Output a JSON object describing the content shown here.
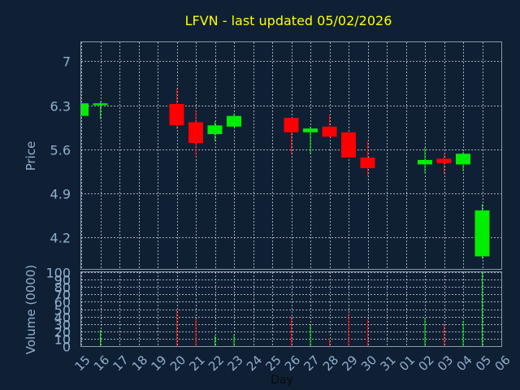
{
  "chart_data": [
    {
      "type": "candlestick",
      "title": "LFVN - last updated 05/02/2026",
      "ylabel": "Price",
      "ylim": [
        3.7,
        7.3
      ],
      "yticks": [
        "7",
        "6.3",
        "5.6",
        "4.9",
        "4.2"
      ],
      "ytick_values": [
        7.0,
        6.3,
        5.6,
        4.9,
        4.2
      ],
      "grid": true,
      "colors": {
        "up": "#00ee00",
        "down": "#ff0000",
        "title": "#ffff00",
        "axis_text": "#8fb0cf",
        "background": "#0f2034",
        "grid": "#ffffff"
      },
      "candles": [
        {
          "day": "15",
          "open": 6.13,
          "high": 6.33,
          "low": 6.13,
          "close": 6.33
        },
        {
          "day": "16",
          "open": 6.3,
          "high": 6.36,
          "low": 6.08,
          "close": 6.33
        },
        {
          "day": "20",
          "open": 6.32,
          "high": 6.57,
          "low": 5.92,
          "close": 5.98
        },
        {
          "day": "21",
          "open": 6.03,
          "high": 6.22,
          "low": 5.48,
          "close": 5.7
        },
        {
          "day": "22",
          "open": 5.84,
          "high": 6.04,
          "low": 5.73,
          "close": 5.98
        },
        {
          "day": "23",
          "open": 5.96,
          "high": 6.17,
          "low": 5.96,
          "close": 6.13
        },
        {
          "day": "26",
          "open": 6.1,
          "high": 6.1,
          "low": 5.52,
          "close": 5.87
        },
        {
          "day": "27",
          "open": 5.87,
          "high": 5.96,
          "low": 5.52,
          "close": 5.93
        },
        {
          "day": "28",
          "open": 5.96,
          "high": 6.15,
          "low": 5.82,
          "close": 5.8
        },
        {
          "day": "29",
          "open": 5.87,
          "high": 5.87,
          "low": 5.47,
          "close": 5.47
        },
        {
          "day": "30",
          "open": 5.47,
          "high": 5.73,
          "low": 5.17,
          "close": 5.3
        },
        {
          "day": "02",
          "open": 5.36,
          "high": 5.63,
          "low": 5.22,
          "close": 5.43
        },
        {
          "day": "03",
          "open": 5.45,
          "high": 5.53,
          "low": 5.2,
          "close": 5.38
        },
        {
          "day": "04",
          "open": 5.36,
          "high": 5.56,
          "low": 5.25,
          "close": 5.53
        },
        {
          "day": "05",
          "open": 3.9,
          "high": 4.73,
          "low": 3.86,
          "close": 4.63
        }
      ]
    },
    {
      "type": "bar",
      "ylabel": "Volume (0000)",
      "ylim": [
        0,
        100
      ],
      "yticks": [
        "100",
        "90",
        "80",
        "70",
        "60",
        "50",
        "40",
        "30",
        "20",
        "10",
        "0"
      ],
      "ytick_values": [
        100,
        90,
        80,
        70,
        60,
        50,
        40,
        30,
        20,
        10,
        0
      ],
      "xlabel": "Day",
      "categories": [
        "15",
        "16",
        "17",
        "18",
        "19",
        "20",
        "21",
        "22",
        "23",
        "24",
        "25",
        "26",
        "27",
        "28",
        "29",
        "30",
        "31",
        "01",
        "02",
        "03",
        "04",
        "05",
        "06"
      ],
      "volumes": [
        {
          "day": "16",
          "value": 22,
          "dir": "up"
        },
        {
          "day": "20",
          "value": 48,
          "dir": "down"
        },
        {
          "day": "21",
          "value": 37,
          "dir": "down"
        },
        {
          "day": "22",
          "value": 14,
          "dir": "up"
        },
        {
          "day": "23",
          "value": 16,
          "dir": "up"
        },
        {
          "day": "26",
          "value": 40,
          "dir": "down"
        },
        {
          "day": "27",
          "value": 29,
          "dir": "up"
        },
        {
          "day": "28",
          "value": 10,
          "dir": "down"
        },
        {
          "day": "29",
          "value": 44,
          "dir": "down"
        },
        {
          "day": "30",
          "value": 36,
          "dir": "down"
        },
        {
          "day": "02",
          "value": 38,
          "dir": "up"
        },
        {
          "day": "03",
          "value": 30,
          "dir": "down"
        },
        {
          "day": "04",
          "value": 34,
          "dir": "up"
        },
        {
          "day": "05",
          "value": 100,
          "dir": "up"
        }
      ]
    }
  ]
}
